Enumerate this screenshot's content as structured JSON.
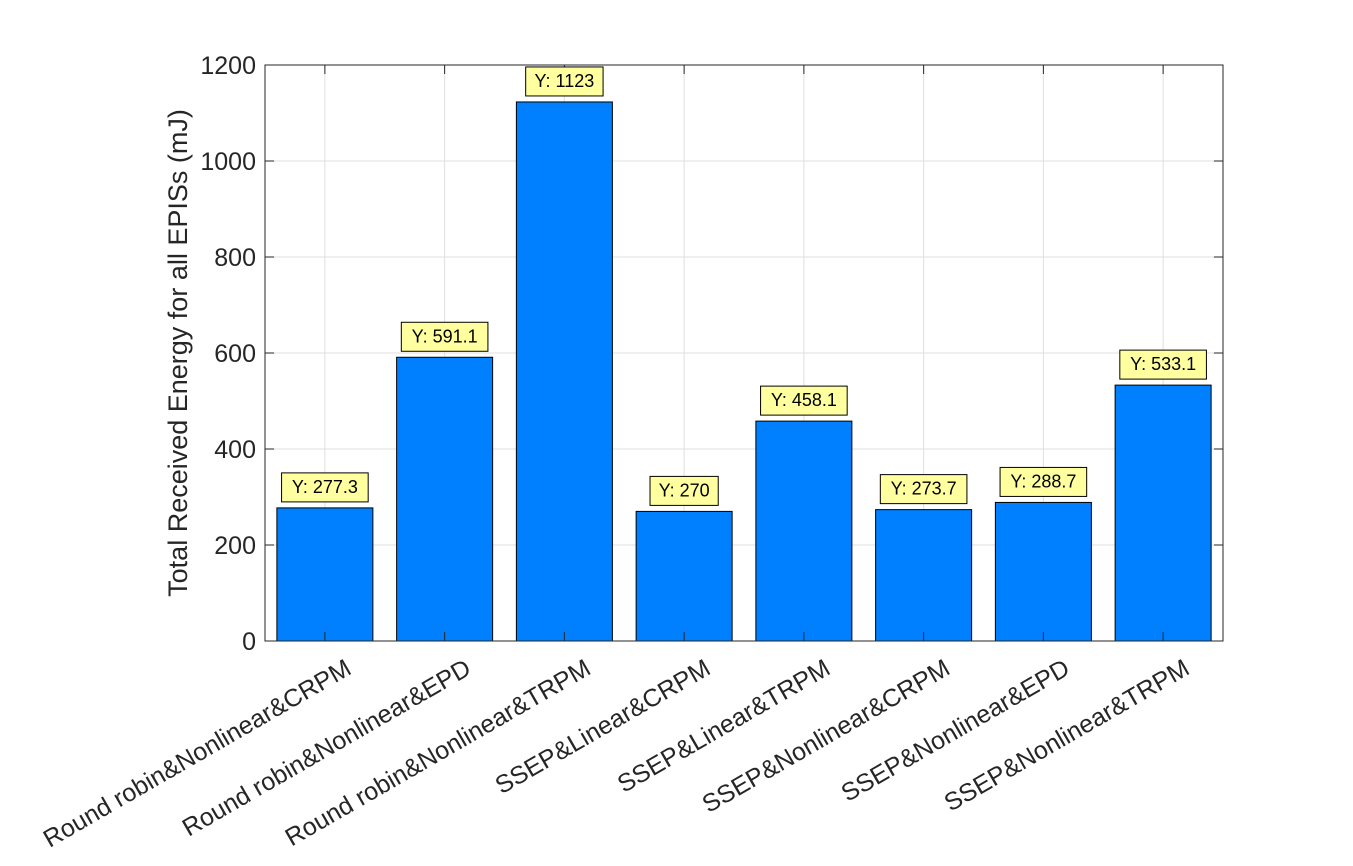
{
  "chart_data": {
    "type": "bar",
    "title": "",
    "xlabel": "",
    "ylabel": "Total Received Energy for all EPISs (mJ)",
    "categories": [
      "Round robin&Nonlinear&CRPM",
      "Round robin&Nonlinear&EPD",
      "Round robin&Nonlinear&TRPM",
      "SSEP&Linear&CRPM",
      "SSEP&Linear&TRPM",
      "SSEP&Nonlinear&CRPM",
      "SSEP&Nonlinear&EPD",
      "SSEP&Nonlinear&TRPM"
    ],
    "values": [
      277.3,
      591.1,
      1123,
      270,
      458.1,
      273.7,
      288.7,
      533.1
    ],
    "data_labels": [
      "Y: 277.3",
      "Y: 591.1",
      "Y: 1123",
      "Y: 270",
      "Y: 458.1",
      "Y: 273.7",
      "Y: 288.7",
      "Y: 533.1"
    ],
    "ylim": [
      0,
      1200
    ],
    "yticks": [
      "0",
      "200",
      "400",
      "600",
      "800",
      "1000",
      "1200"
    ],
    "grid": true,
    "legend": "none",
    "colors": {
      "bar": "#0080ff",
      "bar_edge": "#000000",
      "label_bg": "#ffff9f",
      "grid": "#dfdfdf",
      "axis": "#262626"
    }
  }
}
